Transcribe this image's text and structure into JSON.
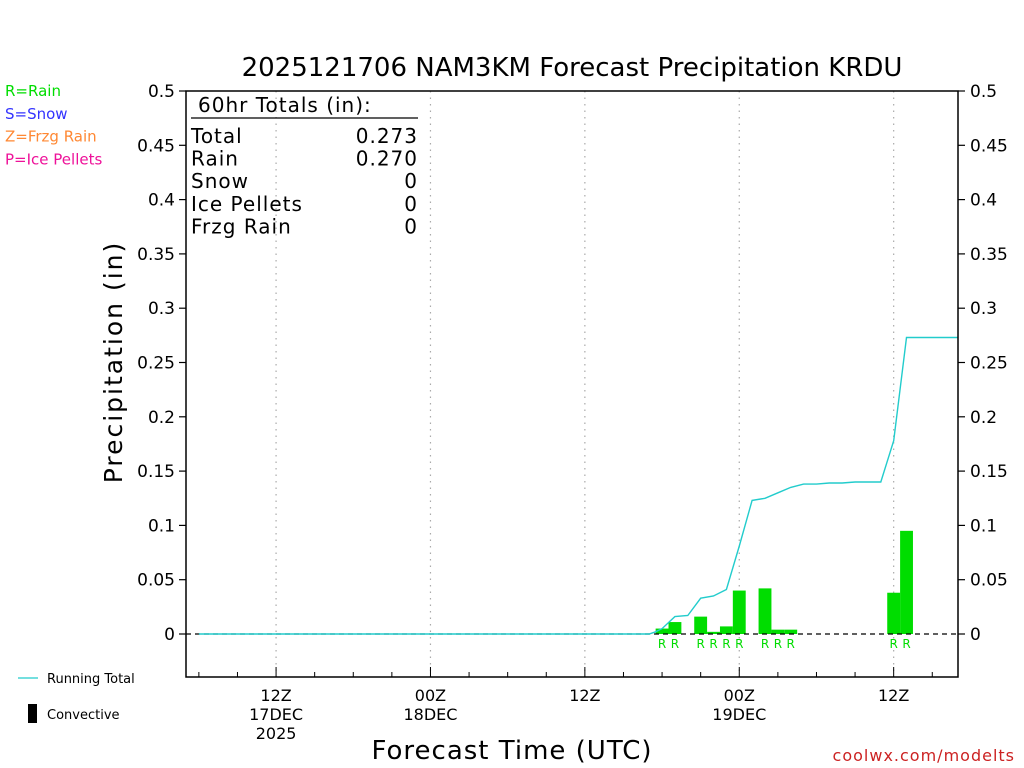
{
  "chart_data": {
    "type": "bar",
    "title": "2025121706 NAM3KM Forecast Precipitation KRDU",
    "xlabel": "Forecast Time (UTC)",
    "ylabel": "Precipitation (in)",
    "ylim": [
      -0.04,
      0.5
    ],
    "yticks": [
      0,
      0.05,
      0.1,
      0.15,
      0.2,
      0.25,
      0.3,
      0.35,
      0.4,
      0.45,
      0.5
    ],
    "ytick_labels": [
      "0",
      "0.05",
      "0.1",
      "0.15",
      "0.2",
      "0.25",
      "0.3",
      "0.35",
      "0.4",
      "0.45",
      "0.5"
    ],
    "x_hour_range": [
      -1,
      59
    ],
    "x_major_ticks": [
      {
        "hour": 6,
        "lines": [
          "12Z",
          "17DEC",
          "2025"
        ]
      },
      {
        "hour": 18,
        "lines": [
          "00Z",
          "18DEC"
        ]
      },
      {
        "hour": 30,
        "lines": [
          "12Z"
        ]
      },
      {
        "hour": 42,
        "lines": [
          "00Z",
          "19DEC"
        ]
      },
      {
        "hour": 54,
        "lines": [
          "12Z"
        ]
      }
    ],
    "grid": "vertical dotted at major ticks",
    "bars": {
      "name": "Rain",
      "hours": [
        36,
        37,
        39,
        40,
        41,
        42,
        44,
        45,
        46,
        54,
        55
      ],
      "values": [
        0.005,
        0.011,
        0.016,
        0.002,
        0.007,
        0.04,
        0.042,
        0.004,
        0.004,
        0.038,
        0.095
      ],
      "ptype": [
        "R",
        "R",
        "R",
        "R",
        "R",
        "R",
        "R",
        "R",
        "R",
        "R",
        "R"
      ]
    },
    "running_total": {
      "name": "Running Total",
      "hours": [
        0,
        35,
        35.5,
        36,
        37,
        38,
        39,
        40,
        41,
        42,
        43,
        44,
        45,
        46,
        47,
        48,
        49,
        50,
        51,
        52,
        53,
        54,
        55,
        56,
        57,
        58,
        59
      ],
      "values": [
        0,
        0,
        0.002,
        0.005,
        0.016,
        0.017,
        0.033,
        0.035,
        0.041,
        0.081,
        0.123,
        0.125,
        0.13,
        0.135,
        0.138,
        0.138,
        0.139,
        0.139,
        0.14,
        0.14,
        0.14,
        0.178,
        0.273,
        0.273,
        0.273,
        0.273,
        0.273
      ]
    },
    "totals_box": {
      "header": "60hr Totals (in):",
      "rows": [
        {
          "label": "Total",
          "value": "0.273"
        },
        {
          "label": "Rain",
          "value": "0.270"
        },
        {
          "label": "Snow",
          "value": "0"
        },
        {
          "label": "Ice Pellets",
          "value": "0"
        },
        {
          "label": "Frzg Rain",
          "value": "0"
        }
      ]
    },
    "ptype_legend": [
      {
        "text": "R=Rain",
        "color": "#00dd00"
      },
      {
        "text": "S=Snow",
        "color": "#3333ff"
      },
      {
        "text": "Z=Frzg Rain",
        "color": "#ff8833"
      },
      {
        "text": "P=Ice Pellets",
        "color": "#ee1199"
      }
    ],
    "line_legend": {
      "running_total": "Running Total",
      "convective": "Convective"
    },
    "credit": "coolwx.com/modelts",
    "colors": {
      "bar": "#00dd00",
      "line": "#22cccc",
      "credit": "#cc2222",
      "axis": "#000000",
      "grid": "#aaaaaa"
    }
  }
}
